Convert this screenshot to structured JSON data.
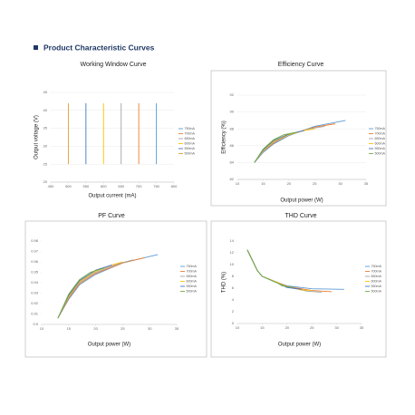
{
  "header": {
    "title": "Product Characteristic Curves"
  },
  "chart_data": [
    {
      "type": "line",
      "title": "Working Window Curve",
      "x_label": "Output current (mA)",
      "y_label": "Output voltage (V)",
      "xlim": [
        450,
        800
      ],
      "xticks": [
        450,
        500,
        550,
        600,
        650,
        700,
        750,
        800
      ],
      "ylim": [
        20,
        45
      ],
      "yticks": [
        20,
        25,
        30,
        35,
        40,
        45
      ],
      "grid": true,
      "series": [
        {
          "name": "750mA",
          "color": "#5b9bd5",
          "x": [
            750,
            750
          ],
          "values": [
            25,
            42
          ]
        },
        {
          "name": "700mA",
          "color": "#ed7d31",
          "x": [
            700,
            700
          ],
          "values": [
            25,
            42
          ]
        },
        {
          "name": "650mA",
          "color": "#a5a5a5",
          "x": [
            650,
            650
          ],
          "values": [
            25,
            42
          ]
        },
        {
          "name": "600mA",
          "color": "#ffc000",
          "x": [
            600,
            600
          ],
          "values": [
            25,
            42
          ]
        },
        {
          "name": "550mA",
          "color": "#4472c4",
          "x": [
            550,
            550
          ],
          "values": [
            25,
            42
          ]
        },
        {
          "name": "500mA",
          "color": "#e0a030",
          "x": [
            500,
            500
          ],
          "values": [
            25,
            42
          ]
        }
      ]
    },
    {
      "type": "line",
      "title": "Efficiency Curve",
      "x_label": "Output power (W)",
      "y_label": "Efficiency (%)",
      "xlim": [
        10,
        35
      ],
      "xticks": [
        10,
        15,
        20,
        25,
        30,
        35
      ],
      "ylim": [
        82,
        92
      ],
      "yticks": [
        82,
        84,
        86,
        88,
        90,
        92
      ],
      "grid": true,
      "series": [
        {
          "name": "750mA",
          "color": "#5b9bd5",
          "x": [
            13.3,
            15,
            17,
            20,
            25,
            31
          ],
          "values": [
            84,
            85.2,
            86.2,
            87.2,
            88.3,
            89
          ]
        },
        {
          "name": "700mA",
          "color": "#ed7d31",
          "x": [
            13.3,
            15,
            17,
            20,
            25,
            29
          ],
          "values": [
            84,
            85.3,
            86.3,
            87.3,
            88.2,
            88.6
          ]
        },
        {
          "name": "650mA",
          "color": "#a5a5a5",
          "x": [
            13.3,
            15,
            17,
            20,
            24,
            27
          ],
          "values": [
            84,
            85.3,
            86.4,
            87.3,
            88,
            88.3
          ]
        },
        {
          "name": "600mA",
          "color": "#ffc000",
          "x": [
            13.3,
            15,
            17,
            20,
            23,
            25
          ],
          "values": [
            84,
            85.4,
            86.5,
            87.3,
            87.8,
            88
          ]
        },
        {
          "name": "550mA",
          "color": "#4472c4",
          "x": [
            13.3,
            15,
            17,
            20,
            23
          ],
          "values": [
            84,
            85.5,
            86.6,
            87.4,
            87.8
          ]
        },
        {
          "name": "500mA",
          "color": "#70ad47",
          "x": [
            13.3,
            15,
            17,
            19,
            21.5
          ],
          "values": [
            84,
            85.6,
            86.7,
            87.3,
            87.6
          ]
        }
      ]
    },
    {
      "type": "line",
      "title": "PF Curve",
      "x_label": "Output power (W)",
      "xlim": [
        10,
        35
      ],
      "xticks": [
        10,
        15,
        20,
        25,
        30,
        35
      ],
      "ylim": [
        0.9,
        0.98
      ],
      "yticks": [
        0.9,
        0.91,
        0.92,
        0.93,
        0.94,
        0.95,
        0.96,
        0.97,
        0.98
      ],
      "grid": false,
      "series": [
        {
          "name": "750mA",
          "color": "#5b9bd5",
          "x": [
            13,
            15,
            17,
            20,
            25,
            31.5
          ],
          "values": [
            0.906,
            0.924,
            0.938,
            0.948,
            0.959,
            0.967
          ]
        },
        {
          "name": "700mA",
          "color": "#ed7d31",
          "x": [
            13,
            15,
            17,
            20,
            25,
            29
          ],
          "values": [
            0.906,
            0.925,
            0.939,
            0.949,
            0.959,
            0.964
          ]
        },
        {
          "name": "650mA",
          "color": "#a5a5a5",
          "x": [
            13,
            15,
            17,
            20,
            24,
            27
          ],
          "values": [
            0.906,
            0.926,
            0.94,
            0.95,
            0.958,
            0.962
          ]
        },
        {
          "name": "600mA",
          "color": "#ffc000",
          "x": [
            13,
            15,
            17,
            20,
            23,
            25
          ],
          "values": [
            0.906,
            0.927,
            0.941,
            0.951,
            0.957,
            0.96
          ]
        },
        {
          "name": "550mA",
          "color": "#4472c4",
          "x": [
            13,
            15,
            17,
            20,
            23
          ],
          "values": [
            0.906,
            0.928,
            0.942,
            0.952,
            0.957
          ]
        },
        {
          "name": "500mA",
          "color": "#70ad47",
          "x": [
            13,
            15,
            17,
            19,
            21.5
          ],
          "values": [
            0.906,
            0.929,
            0.943,
            0.95,
            0.954
          ]
        }
      ]
    },
    {
      "type": "line",
      "title": "THD Curve",
      "x_label": "Output power (W)",
      "y_label": "THD (%)",
      "xlim": [
        10,
        35
      ],
      "xticks": [
        10,
        15,
        20,
        25,
        30,
        35
      ],
      "ylim": [
        0,
        14
      ],
      "yticks": [
        0,
        2,
        4,
        6,
        8,
        10,
        12,
        14
      ],
      "grid": false,
      "series": [
        {
          "name": "750mA",
          "color": "#5b9bd5",
          "x": [
            12,
            14,
            15,
            18,
            20,
            25,
            31.5
          ],
          "values": [
            12.5,
            9,
            8,
            7,
            6.4,
            5.9,
            5.8
          ]
        },
        {
          "name": "700mA",
          "color": "#ed7d31",
          "x": [
            12,
            14,
            15,
            18,
            20,
            25,
            29
          ],
          "values": [
            12.5,
            9,
            8,
            7,
            6.3,
            5.6,
            5.4
          ]
        },
        {
          "name": "650mA",
          "color": "#a5a5a5",
          "x": [
            12,
            14,
            15,
            18,
            20,
            24,
            27
          ],
          "values": [
            12.5,
            9,
            8,
            7,
            6.2,
            5.5,
            5.3
          ]
        },
        {
          "name": "600mA",
          "color": "#ffc000",
          "x": [
            12,
            14,
            15,
            18,
            20,
            23,
            25
          ],
          "values": [
            12.5,
            9,
            8,
            7,
            6.2,
            5.7,
            5.6
          ]
        },
        {
          "name": "550mA",
          "color": "#4472c4",
          "x": [
            12,
            14,
            15,
            18,
            20,
            23
          ],
          "values": [
            12.5,
            9,
            8,
            6.9,
            6.1,
            5.8
          ]
        },
        {
          "name": "500mA",
          "color": "#70ad47",
          "x": [
            12,
            14,
            15,
            18,
            19,
            21.5
          ],
          "values": [
            12.5,
            9,
            8,
            6.9,
            6.4,
            6.1
          ]
        }
      ]
    }
  ]
}
